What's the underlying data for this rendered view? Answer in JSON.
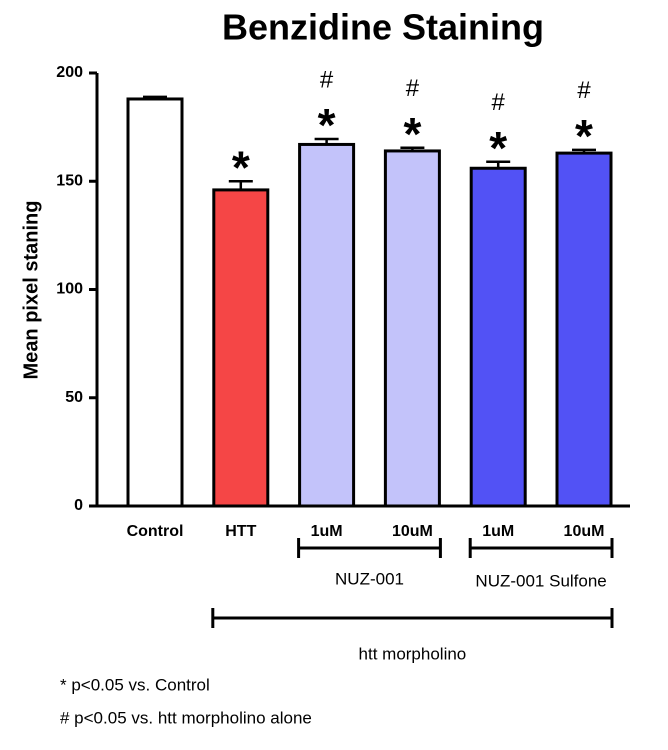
{
  "chart_data": {
    "type": "bar",
    "title": "Benzidine Staining",
    "y_label": "Mean pixel staning",
    "categories": [
      "Control",
      "HTT",
      "1uM",
      "10uM",
      "1uM",
      "10uM"
    ],
    "values": [
      188,
      146,
      167,
      164,
      156,
      163
    ],
    "errors": [
      1,
      4,
      2.5,
      1.5,
      3,
      1.5
    ],
    "colors": [
      "#ffffff",
      "#f54646",
      "#c3c3fa",
      "#c3c3fa",
      "#5252f5",
      "#5252f5"
    ],
    "star_labels": [
      null,
      "*",
      "*",
      "*",
      "*",
      "*"
    ],
    "hash_labels": [
      null,
      null,
      "#",
      "#",
      "#",
      "#"
    ],
    "groups": [
      "NUZ-001",
      "NUZ-001 Sulfone",
      "htt morpholino"
    ],
    "footnotes": [
      "* p<0.05 vs. Control",
      "# p<0.05 vs. htt morpholino alone"
    ],
    "ylim": [
      0,
      200
    ],
    "yticks": [
      0,
      50,
      100,
      150,
      200
    ]
  }
}
